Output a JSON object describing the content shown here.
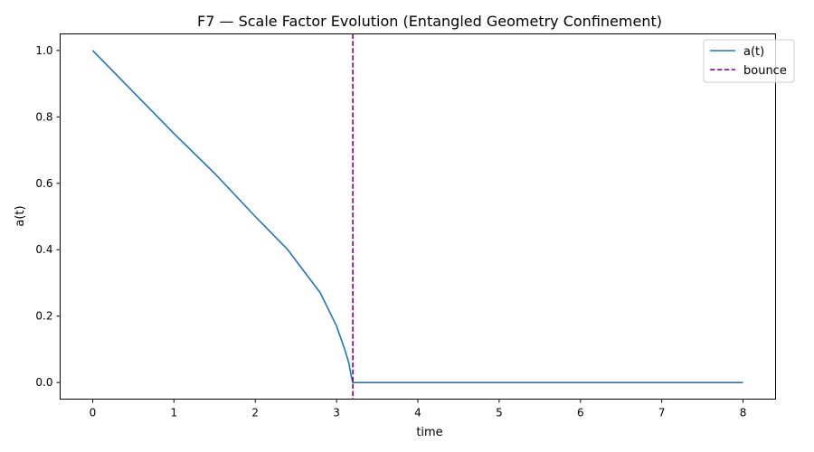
{
  "chart_data": {
    "type": "line",
    "title": "F7 — Scale Factor Evolution (Entangled Geometry Confinement)",
    "xlabel": "time",
    "ylabel": "a(t)",
    "xlim": [
      -0.4,
      8.4
    ],
    "ylim": [
      -0.05,
      1.05
    ],
    "xticks": [
      0,
      1,
      2,
      3,
      4,
      5,
      6,
      7,
      8
    ],
    "yticks": [
      0.0,
      0.2,
      0.4,
      0.6,
      0.8,
      1.0
    ],
    "xtick_labels": [
      "0",
      "1",
      "2",
      "3",
      "4",
      "5",
      "6",
      "7",
      "8"
    ],
    "ytick_labels": [
      "0.0",
      "0.2",
      "0.4",
      "0.6",
      "0.8",
      "1.0"
    ],
    "grid": false,
    "legend_position": "top-right",
    "series": [
      {
        "name": "a(t)",
        "color": "#1f77b4",
        "style": "solid",
        "x": [
          0,
          0.5,
          1.0,
          1.5,
          2.0,
          2.4,
          2.8,
          3.0,
          3.1,
          3.15,
          3.18,
          3.2,
          3.5,
          4,
          5,
          6,
          7,
          8
        ],
        "y": [
          1.0,
          0.875,
          0.75,
          0.63,
          0.5,
          0.4,
          0.27,
          0.17,
          0.1,
          0.06,
          0.02,
          0.0,
          0.0,
          0.0,
          0.0,
          0.0,
          0.0,
          0.0
        ]
      }
    ],
    "vlines": [
      {
        "name": "bounce",
        "x": 3.2,
        "color": "#800080",
        "style": "dashed"
      }
    ]
  }
}
